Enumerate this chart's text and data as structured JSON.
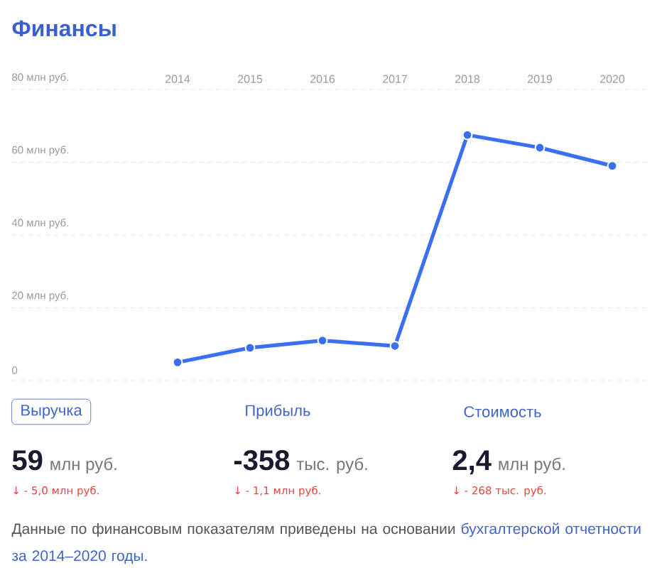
{
  "chart_data": {
    "type": "line",
    "title": "Финансы",
    "categories": [
      "2014",
      "2015",
      "2016",
      "2017",
      "2018",
      "2019",
      "2020"
    ],
    "series": [
      {
        "color": "#3b6ff2",
        "values": [
          5,
          9,
          11,
          9.5,
          67.5,
          64,
          59
        ]
      }
    ],
    "ylim": [
      0,
      80
    ],
    "yticks": [
      0,
      {
        "value": 20,
        "label": "20 млн руб."
      },
      {
        "value": 40,
        "label": "40 млн руб."
      },
      {
        "value": 60,
        "label": "60 млн руб."
      },
      {
        "value": 80,
        "label": "80 млн руб."
      }
    ],
    "grid": "y",
    "marker": "circle",
    "line_style": "solid",
    "annotations": [
      "Выручка",
      "Прибыль",
      "Стоимость",
      "59",
      "-358",
      "2,4",
      "млн руб.",
      "тыс. руб.",
      "млн руб.",
      "↓ - 5,0 млн руб.",
      "↓ - 1,1 млн руб.",
      "↓ - 268 тыс. руб.",
      "Данные по финансовым показателям приведены на основании",
      "бухгалтерской отчетности за 2014–2020 годы."
    ]
  }
}
